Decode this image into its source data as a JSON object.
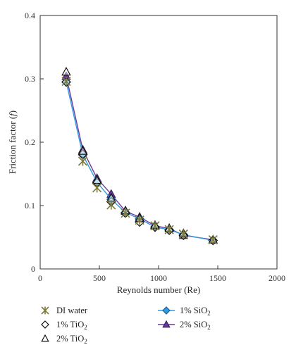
{
  "chart_data": {
    "type": "line",
    "xlabel": "Reynolds number (Re)",
    "ylabel": "Friction factor (f)",
    "xlim": [
      0,
      2000
    ],
    "ylim": [
      0,
      0.4
    ],
    "xticks": [
      0,
      500,
      1000,
      1500,
      2000
    ],
    "yticks": [
      0,
      0.1,
      0.2,
      0.3,
      0.4
    ],
    "ytick_labels": [
      "0",
      "0.1",
      "0.2",
      "0.3",
      "0.4"
    ],
    "grid": false,
    "legend_position": "bottom",
    "series": [
      {
        "name": "DI water",
        "marker": "asterisk",
        "color": "#7d7a3a",
        "line": false,
        "x": [
          220,
          360,
          480,
          600,
          720,
          840,
          970,
          1090,
          1210,
          1460
        ],
        "y": [
          0.296,
          0.17,
          0.128,
          0.101,
          0.088,
          0.077,
          0.068,
          0.062,
          0.055,
          0.046
        ]
      },
      {
        "name": "1% TiO2",
        "marker": "diamond-open",
        "color": "#111111",
        "line": false,
        "x": [
          220,
          360,
          480,
          600,
          720,
          840,
          970,
          1090,
          1210,
          1460
        ],
        "y": [
          0.295,
          0.181,
          0.136,
          0.106,
          0.088,
          0.074,
          0.066,
          0.061,
          0.053,
          0.045
        ]
      },
      {
        "name": "2% TiO2",
        "marker": "triangle-open",
        "color": "#111111",
        "line": false,
        "x": [
          220,
          360,
          480,
          600,
          720,
          840,
          970,
          1090,
          1210,
          1460
        ],
        "y": [
          0.311,
          0.186,
          0.14,
          0.112,
          0.092,
          0.08,
          0.069,
          0.064,
          0.056,
          0.046
        ]
      },
      {
        "name": "1% SiO2",
        "marker": "diamond",
        "color": "#2f9be0",
        "line": true,
        "x": [
          220,
          360,
          480,
          600,
          720,
          840,
          970,
          1090,
          1210,
          1460
        ],
        "y": [
          0.295,
          0.18,
          0.137,
          0.11,
          0.089,
          0.079,
          0.066,
          0.062,
          0.054,
          0.045
        ]
      },
      {
        "name": "2% SiO2",
        "marker": "triangle",
        "color": "#6a3a9a",
        "line": true,
        "x": [
          220,
          360,
          480,
          600,
          720,
          840,
          970,
          1090,
          1210,
          1460
        ],
        "y": [
          0.304,
          0.188,
          0.143,
          0.118,
          0.091,
          0.082,
          0.068,
          0.064,
          0.053,
          0.046
        ]
      }
    ],
    "legend": [
      {
        "label": "DI water",
        "series": 0
      },
      {
        "label": "1% TiO",
        "sub": "2",
        "series": 1
      },
      {
        "label": "2% TiO",
        "sub": "2",
        "series": 2
      },
      {
        "label": "1% SiO",
        "sub": "2",
        "series": 3
      },
      {
        "label": "2% SiO",
        "sub": "2",
        "series": 4
      }
    ]
  }
}
